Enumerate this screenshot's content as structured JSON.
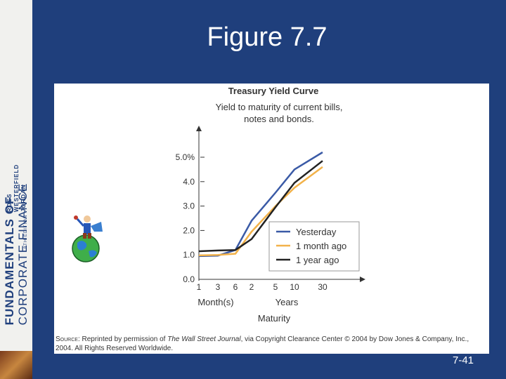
{
  "sidebar": {
    "book_title_line1": "FUNDAMENTALS OF",
    "book_title_line2": "CORPORATE FINANCE",
    "author1": "ROSS",
    "author2": "WESTERFIELD",
    "author3": "JORDAN",
    "edition": "8TH EDITION"
  },
  "slide": {
    "title": "Figure 7.7",
    "number": "7-41"
  },
  "source": {
    "prefix": "Source:",
    "before_journal": " Reprinted by permission of ",
    "journal": "The Wall Street Journal",
    "after_journal": ", via Copyright Clearance Center © 2004 by Dow Jones & Company, Inc., 2004. All Rights Reserved Worldwide."
  },
  "colors": {
    "background": "#1f3f7c",
    "yesterday": "#3a5aa6",
    "month_ago": "#f2b24a",
    "year_ago": "#222222"
  },
  "chart_data": {
    "type": "line",
    "title": "Treasury Yield Curve",
    "subtitle_line1": "Yield to maturity of current bills,",
    "subtitle_line2": "notes and bonds.",
    "xlabel": "Maturity",
    "x_group_labels": [
      "Month(s)",
      "Years"
    ],
    "x_ticks": [
      {
        "label": "1",
        "unit": "months"
      },
      {
        "label": "3",
        "unit": "months"
      },
      {
        "label": "6",
        "unit": "months"
      },
      {
        "label": "2",
        "unit": "years"
      },
      {
        "label": "5",
        "unit": "years"
      },
      {
        "label": "10",
        "unit": "years"
      },
      {
        "label": "30",
        "unit": "years"
      }
    ],
    "y_ticks": [
      {
        "value": 0,
        "label": "0.0"
      },
      {
        "value": 1,
        "label": "1.0"
      },
      {
        "value": 2,
        "label": "2.0"
      },
      {
        "value": 3,
        "label": "3.0"
      },
      {
        "value": 4,
        "label": "4.0"
      },
      {
        "value": 5,
        "label": "5.0%"
      }
    ],
    "ylim": [
      0,
      5.5
    ],
    "grid": false,
    "legend_position": "bottom-right",
    "series": [
      {
        "name": "Yesterday",
        "color": "#3a5aa6",
        "values": [
          0.95,
          0.97,
          1.2,
          2.4,
          3.55,
          4.5,
          5.2
        ]
      },
      {
        "name": "1 month ago",
        "color": "#f2b24a",
        "values": [
          0.98,
          1.0,
          1.05,
          1.95,
          3.0,
          3.75,
          4.6
        ]
      },
      {
        "name": "1 year ago",
        "color": "#222222",
        "values": [
          1.15,
          1.18,
          1.2,
          1.65,
          2.95,
          3.95,
          4.85
        ]
      }
    ]
  }
}
